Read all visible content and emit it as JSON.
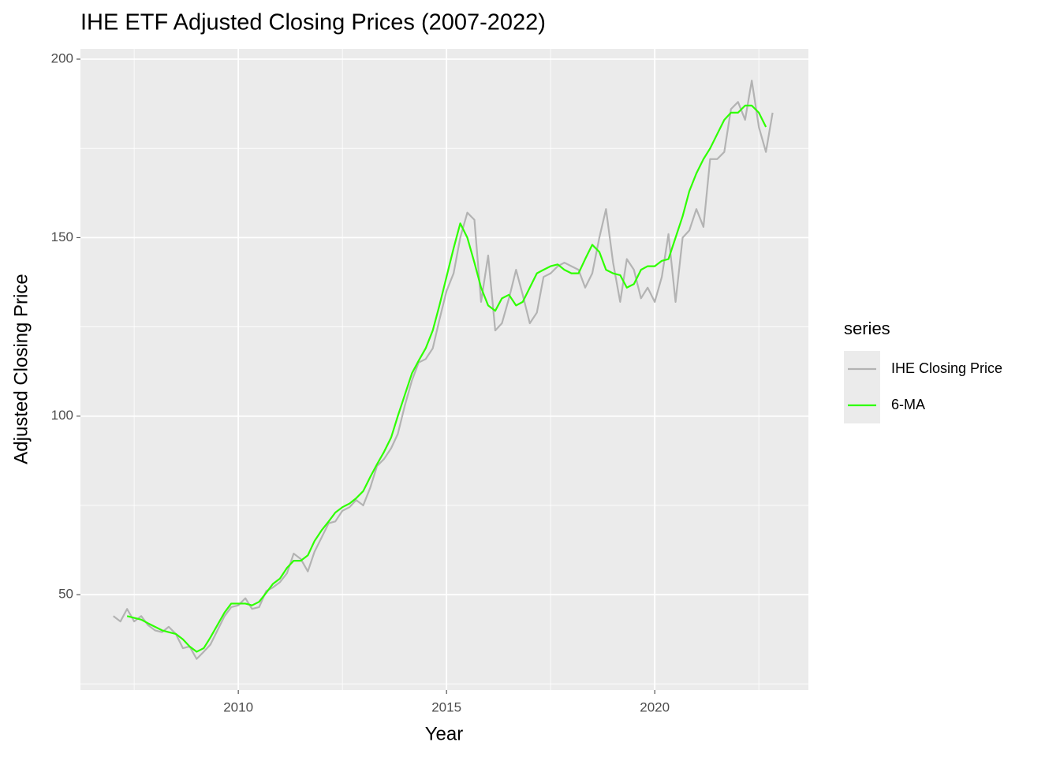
{
  "chart_data": {
    "type": "line",
    "title": "IHE ETF Adjusted Closing Prices (2007-2022)",
    "x_label": "Year",
    "y_label": "Adjusted Closing Price",
    "legend_title": "series",
    "legend": "right",
    "grid": true,
    "x": [
      2007,
      2007.17,
      2007.33,
      2007.5,
      2007.67,
      2007.83,
      2008,
      2008.17,
      2008.33,
      2008.5,
      2008.67,
      2008.83,
      2009,
      2009.17,
      2009.33,
      2009.5,
      2009.67,
      2009.83,
      2010,
      2010.17,
      2010.33,
      2010.5,
      2010.67,
      2010.83,
      2011,
      2011.17,
      2011.33,
      2011.5,
      2011.67,
      2011.83,
      2012,
      2012.17,
      2012.33,
      2012.5,
      2012.67,
      2012.83,
      2013,
      2013.17,
      2013.33,
      2013.5,
      2013.67,
      2013.83,
      2014,
      2014.17,
      2014.33,
      2014.5,
      2014.67,
      2014.83,
      2015,
      2015.17,
      2015.33,
      2015.5,
      2015.67,
      2015.83,
      2016,
      2016.17,
      2016.33,
      2016.5,
      2016.67,
      2016.83,
      2017,
      2017.17,
      2017.33,
      2017.5,
      2017.67,
      2017.83,
      2018,
      2018.17,
      2018.33,
      2018.5,
      2018.67,
      2018.83,
      2019,
      2019.17,
      2019.33,
      2019.5,
      2019.67,
      2019.83,
      2020,
      2020.17,
      2020.33,
      2020.5,
      2020.67,
      2020.83,
      2021,
      2021.17,
      2021.33,
      2021.5,
      2021.67,
      2021.83,
      2022,
      2022.17,
      2022.33,
      2022.5,
      2022.67,
      2022.83
    ],
    "series": [
      {
        "name": "IHE Closing Price",
        "color": "#b3b3b3",
        "values": [
          44,
          42.5,
          46,
          42.5,
          44,
          41.5,
          40,
          39.5,
          41,
          39,
          35,
          35.5,
          32,
          34,
          36,
          40,
          44,
          46.5,
          47,
          49,
          46,
          46.5,
          51,
          52,
          53.5,
          56,
          61.5,
          60,
          56.5,
          62,
          66,
          70,
          70.5,
          73.5,
          74.5,
          76.5,
          75,
          80,
          86,
          88,
          91,
          95,
          103,
          110,
          115,
          116,
          119,
          127,
          135,
          140,
          150,
          157,
          155,
          132,
          145,
          124,
          126,
          133,
          141,
          134,
          126,
          129,
          139,
          140,
          142,
          143,
          142,
          141,
          136,
          140,
          150,
          158,
          143,
          132,
          144,
          141,
          133,
          136,
          132,
          139,
          151,
          132,
          150,
          152,
          158,
          153,
          172,
          172,
          174,
          186,
          188,
          183,
          194,
          181,
          174,
          185
        ]
      },
      {
        "name": "6-MA",
        "color": "#2eff00",
        "values": [
          null,
          null,
          44,
          43.5,
          43,
          42,
          41,
          40,
          39.5,
          39,
          37.5,
          35.5,
          34,
          35,
          38,
          41.5,
          45,
          47.5,
          47.5,
          47.5,
          47,
          48,
          50.5,
          53,
          54.5,
          57.5,
          59.5,
          59.5,
          61,
          65,
          68,
          70.5,
          73,
          74.5,
          75.5,
          77,
          79,
          83,
          86.5,
          90,
          94,
          100,
          106,
          112,
          115.5,
          119,
          124,
          131,
          139,
          147,
          154,
          150,
          143,
          136,
          131,
          129.5,
          133,
          134,
          131,
          132,
          136,
          140,
          141,
          142,
          142.5,
          141,
          140,
          140,
          144,
          148,
          146,
          141,
          140,
          139.5,
          136,
          137,
          141,
          142,
          142,
          143.5,
          144,
          150,
          156,
          163,
          168,
          172,
          175,
          179,
          183,
          185,
          185,
          187,
          187,
          185,
          181,
          null
        ]
      }
    ],
    "xlim": [
      2006.21,
      2023.69
    ],
    "xticks": [
      2010,
      2015,
      2020
    ],
    "xminor": [
      2007.5,
      2012.5,
      2017.5,
      2022.5
    ],
    "ylim": [
      23.3,
      202.87
    ],
    "yticks": [
      50,
      100,
      150,
      200
    ],
    "yminor": [
      25,
      75,
      125,
      175
    ]
  }
}
